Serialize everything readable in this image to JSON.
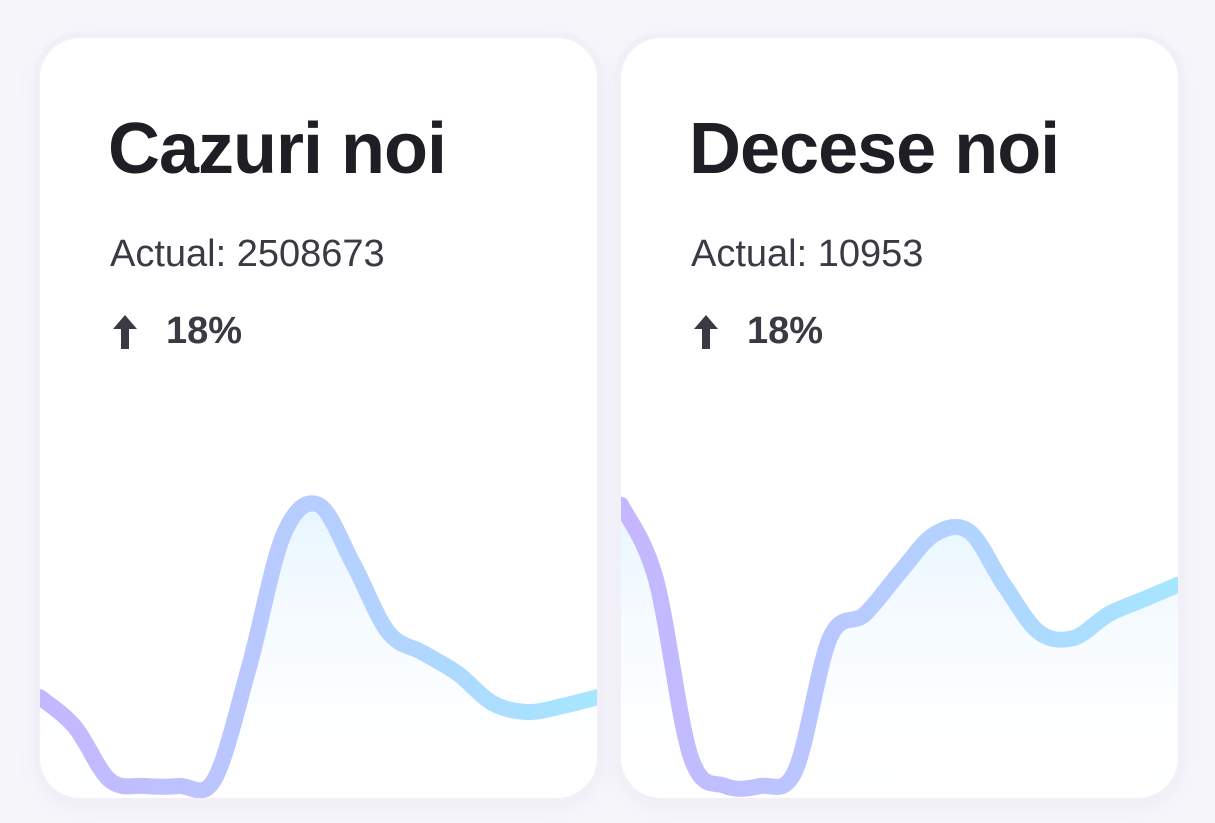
{
  "cards": [
    {
      "title": "Cazuri noi",
      "subtitle": "Actual: 2508673",
      "trend_icon": "arrow-up-icon",
      "trend_value": "18%",
      "chart_data": {
        "type": "area",
        "x": [
          0,
          1,
          2,
          3,
          4,
          5,
          6,
          7,
          8,
          9,
          10,
          11,
          12,
          13,
          14,
          15,
          16
        ],
        "values": [
          0.3,
          0.2,
          0.02,
          0.0,
          0.0,
          0.02,
          0.4,
          0.85,
          0.95,
          0.75,
          0.52,
          0.45,
          0.38,
          0.28,
          0.25,
          0.27,
          0.3
        ]
      }
    },
    {
      "title": "Decese noi",
      "subtitle": "Actual: 10953",
      "trend_icon": "arrow-up-icon",
      "trend_value": "18%",
      "chart_data": {
        "type": "area",
        "x": [
          0,
          1,
          2,
          3,
          4,
          5,
          6,
          7,
          8,
          9,
          10,
          11,
          12,
          13,
          14,
          15,
          16
        ],
        "values": [
          0.95,
          0.7,
          0.1,
          0.0,
          0.0,
          0.05,
          0.5,
          0.58,
          0.72,
          0.85,
          0.86,
          0.68,
          0.52,
          0.5,
          0.58,
          0.63,
          0.68
        ]
      }
    }
  ],
  "colors": {
    "line_start": "#c5b6ff",
    "line_end": "#a6e6ff",
    "fill": "#e6f5ff"
  }
}
